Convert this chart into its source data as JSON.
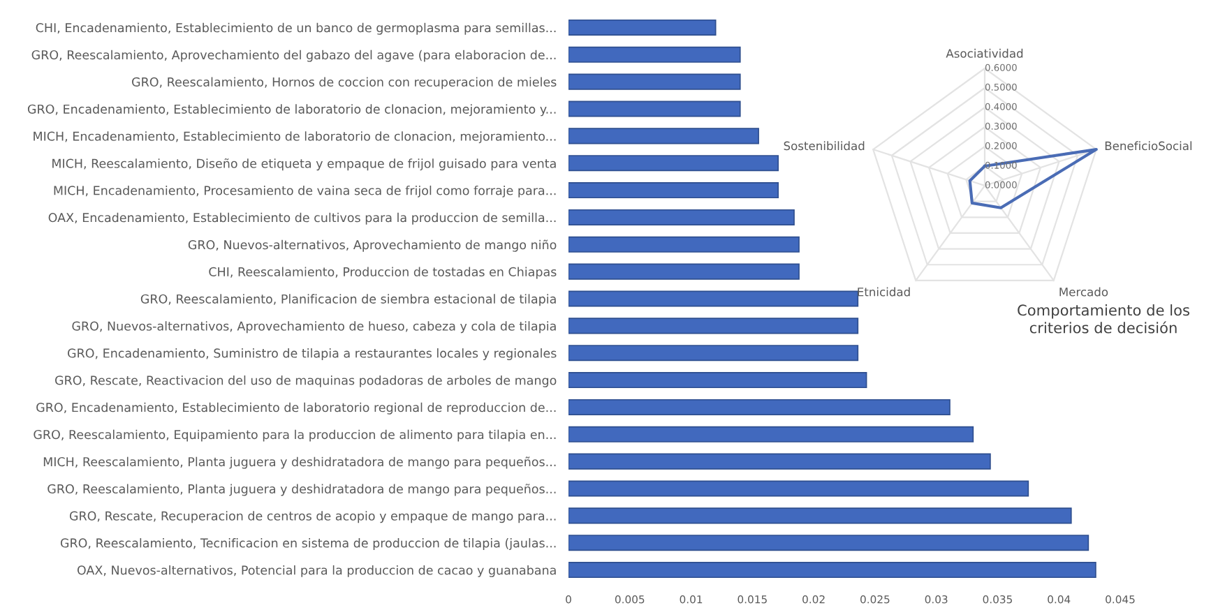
{
  "chart_data": [
    {
      "type": "bar",
      "orientation": "horizontal",
      "categories": [
        "CHI, Encadenamiento, Establecimiento de un banco de germoplasma para semillas...",
        "GRO, Reescalamiento, Aprovechamiento del gabazo del agave (para elaboracion de...",
        "GRO, Reescalamiento, Hornos de coccion con recuperacion de mieles",
        "GRO, Encadenamiento, Establecimiento de laboratorio de clonacion, mejoramiento y...",
        "MICH, Encadenamiento, Establecimiento de laboratorio de clonacion, mejoramiento...",
        "MICH, Reescalamiento, Diseño de etiqueta y empaque de frijol guisado para venta",
        "MICH, Encadenamiento, Procesamiento de vaina seca de frijol como forraje para...",
        "OAX, Encadenamiento, Establecimiento de cultivos para la produccion de semilla...",
        "GRO, Nuevos-alternativos, Aprovechamiento de mango niño",
        "CHI, Reescalamiento, Produccion de tostadas en Chiapas",
        "GRO, Reescalamiento, Planificacion de siembra estacional de tilapia",
        "GRO, Nuevos-alternativos, Aprovechamiento de hueso, cabeza y cola de tilapia",
        "GRO, Encadenamiento, Suministro de tilapia a restaurantes locales y regionales",
        "GRO, Rescate, Reactivacion del uso de maquinas podadoras de arboles de mango",
        "GRO, Encadenamiento, Establecimiento de laboratorio regional de reproduccion de...",
        "GRO, Reescalamiento, Equipamiento para la produccion de alimento para tilapia en...",
        "MICH, Reescalamiento, Planta juguera y deshidratadora de mango para pequeños...",
        "GRO, Reescalamiento, Planta juguera y deshidratadora de mango para pequeños...",
        "GRO, Rescate, Recuperacion de centros de acopio y empaque de mango para...",
        "GRO, Reescalamiento, Tecnificacion en sistema de produccion de tilapia (jaulas...",
        "OAX, Nuevos-alternativos, Potencial para la produccion de cacao y guanabana"
      ],
      "values": [
        0.012,
        0.014,
        0.014,
        0.014,
        0.0155,
        0.0171,
        0.0171,
        0.0184,
        0.0188,
        0.0188,
        0.0236,
        0.0236,
        0.0236,
        0.0243,
        0.0311,
        0.033,
        0.0344,
        0.0375,
        0.041,
        0.0424,
        0.043
      ],
      "color": "#4169be",
      "xlim": [
        0,
        0.045
      ],
      "xticks": [
        0,
        0.005,
        0.01,
        0.015,
        0.02,
        0.025,
        0.03,
        0.035,
        0.04,
        0.045
      ],
      "grid": false,
      "legend": false
    },
    {
      "type": "radar",
      "title": "Comportamiento de los criterios de decisión",
      "categories": [
        "Asociatividad",
        "BeneficioSocial",
        "Mercado",
        "Etnicidad",
        "Sostenibilidad"
      ],
      "series": [
        {
          "color": "#4a6cb5",
          "values": [
            0.1,
            0.6,
            0.14,
            0.11,
            0.08
          ]
        }
      ],
      "ylim": [
        0,
        0.6
      ],
      "yticks": [
        {
          "value": 0,
          "label": "0.0000"
        },
        {
          "value": 0.1,
          "label": "0.1000"
        },
        {
          "value": 0.2,
          "label": "0.2000"
        },
        {
          "value": 0.3,
          "label": "0.3000"
        },
        {
          "value": 0.4,
          "label": "0.4000"
        },
        {
          "value": 0.5,
          "label": "0.5000"
        },
        {
          "value": 0.6,
          "label": "0.6000"
        }
      ],
      "grid": true,
      "legend": false
    }
  ]
}
